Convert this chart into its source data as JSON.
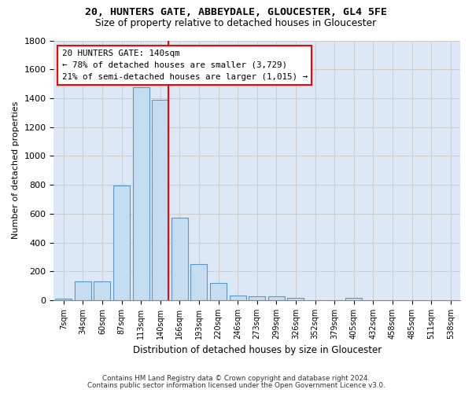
{
  "title1": "20, HUNTERS GATE, ABBEYDALE, GLOUCESTER, GL4 5FE",
  "title2": "Size of property relative to detached houses in Gloucester",
  "xlabel": "Distribution of detached houses by size in Gloucester",
  "ylabel": "Number of detached properties",
  "categories": [
    "7sqm",
    "34sqm",
    "60sqm",
    "87sqm",
    "113sqm",
    "140sqm",
    "166sqm",
    "193sqm",
    "220sqm",
    "246sqm",
    "273sqm",
    "299sqm",
    "326sqm",
    "352sqm",
    "379sqm",
    "405sqm",
    "432sqm",
    "458sqm",
    "485sqm",
    "511sqm",
    "538sqm"
  ],
  "values": [
    10,
    130,
    130,
    795,
    1475,
    1390,
    570,
    250,
    120,
    35,
    28,
    28,
    18,
    0,
    0,
    18,
    0,
    0,
    0,
    0,
    0
  ],
  "bar_color": "#c5ddf0",
  "bar_edge_color": "#5b96c8",
  "highlight_bar_index": 5,
  "highlight_line_color": "red",
  "annotation_text": "20 HUNTERS GATE: 140sqm\n← 78% of detached houses are smaller (3,729)\n21% of semi-detached houses are larger (1,015) →",
  "ylim": [
    0,
    1800
  ],
  "yticks": [
    0,
    200,
    400,
    600,
    800,
    1000,
    1200,
    1400,
    1600,
    1800
  ],
  "footer1": "Contains HM Land Registry data © Crown copyright and database right 2024.",
  "footer2": "Contains public sector information licensed under the Open Government Licence v3.0.",
  "grid_color": "#cccccc",
  "bg_color": "#dce8f5"
}
